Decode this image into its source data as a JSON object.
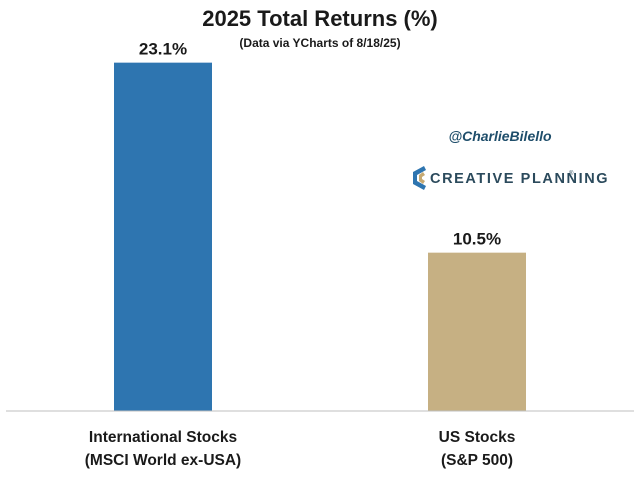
{
  "chart_data": {
    "type": "bar",
    "title": "2025 Total Returns (%)",
    "subtitle": "(Data via YCharts of 8/18/25)",
    "categories": [
      [
        "International Stocks",
        "(MSCI World ex-USA)"
      ],
      [
        "US Stocks",
        "(S&P 500)"
      ]
    ],
    "values": [
      23.1,
      10.5
    ],
    "data_labels": [
      "23.1%",
      "10.5%"
    ],
    "bar_colors": [
      "#2e75b0",
      "#c6b083"
    ],
    "ylim": [
      0,
      25
    ],
    "xlabel": "",
    "ylabel": "",
    "grid": false
  },
  "branding": {
    "handle": "@CharlieBilello",
    "company": "CREATIVE PLANNING",
    "trademark": "®",
    "logo_icon": "creative-planning-logo-icon"
  },
  "colors": {
    "handle": "#1f4e6b",
    "brand_text": "#2b4a5c",
    "logo_blue": "#2e75b0",
    "logo_gold": "#c6a972",
    "axis": "#bfbfbf"
  }
}
